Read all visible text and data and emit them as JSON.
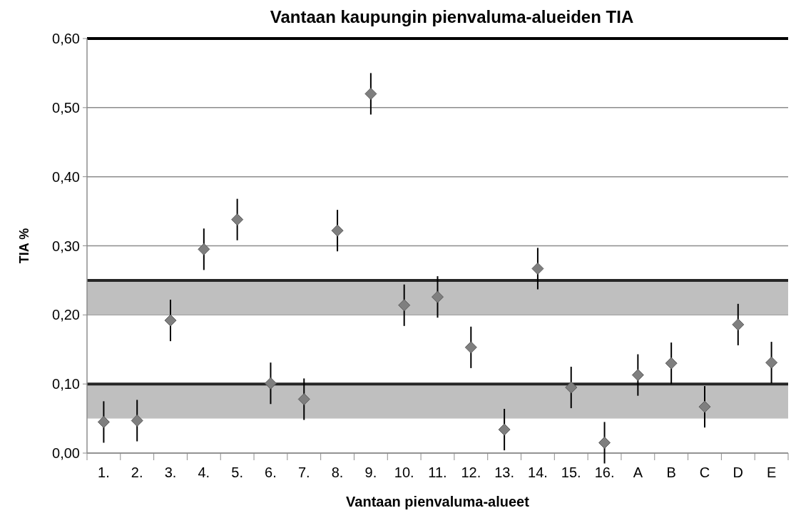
{
  "chart_data": {
    "type": "scatter",
    "title": "Vantaan kaupungin pienvaluma-alueiden TIA",
    "xlabel": "Vantaan pienvaluma-alueet",
    "ylabel": "TIA %",
    "categories": [
      "1.",
      "2.",
      "3.",
      "4.",
      "5.",
      "6.",
      "7.",
      "8.",
      "9.",
      "10.",
      "11.",
      "12.",
      "13.",
      "14.",
      "15.",
      "16.",
      "A",
      "B",
      "C",
      "D",
      "E"
    ],
    "series": [
      {
        "color": "#7f7f7f",
        "values": [
          0.045,
          0.047,
          0.192,
          0.295,
          0.338,
          0.101,
          0.078,
          0.322,
          0.52,
          0.214,
          0.226,
          0.153,
          0.034,
          0.267,
          0.095,
          0.015,
          0.113,
          0.13,
          0.067,
          0.186,
          0.131
        ],
        "errors": [
          0.03,
          0.03,
          0.03,
          0.03,
          0.03,
          0.03,
          0.03,
          0.03,
          0.03,
          0.03,
          0.03,
          0.03,
          0.03,
          0.03,
          0.03,
          0.03,
          0.03,
          0.03,
          0.03,
          0.03,
          0.03
        ]
      }
    ],
    "ylim": [
      0,
      0.6
    ],
    "yticks": [
      {
        "value": 0,
        "label": "0,00"
      },
      {
        "value": 0.1,
        "label": "0,10"
      },
      {
        "value": 0.2,
        "label": "0,20"
      },
      {
        "value": 0.3,
        "label": "0,30"
      },
      {
        "value": 0.4,
        "label": "0,40"
      },
      {
        "value": 0.5,
        "label": "0,50"
      },
      {
        "value": 0.6,
        "label": "0,60"
      }
    ],
    "bands": [
      {
        "axis": "y",
        "from": 0.05,
        "to": 0.1,
        "color": "#bfbfbf"
      },
      {
        "axis": "y",
        "from": 0.2,
        "to": 0.25,
        "color": "#bfbfbf"
      }
    ],
    "ref_lines": [
      {
        "axis": "y",
        "value": 0.1,
        "color": "#262626"
      },
      {
        "axis": "y",
        "value": 0.25,
        "color": "#262626"
      },
      {
        "axis": "y",
        "value": 0.6,
        "color": "#000000"
      }
    ],
    "grid": "y",
    "marker": "diamond"
  }
}
